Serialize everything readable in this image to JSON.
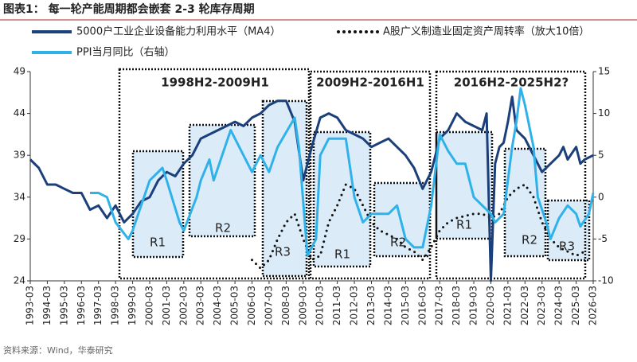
{
  "chart_data": {
    "type": "line",
    "title": "图表1：  每一轮产能周期都会嵌套 2-3 轮库存周期",
    "source": "资料来源：Wind，华泰研究",
    "xlim": [
      1993,
      2026
    ],
    "xticks": [
      {
        "value": 1993,
        "label": "1993-03"
      },
      {
        "value": 1994,
        "label": "1994-03"
      },
      {
        "value": 1995,
        "label": "1995-03"
      },
      {
        "value": 1996,
        "label": "1996-03"
      },
      {
        "value": 1997,
        "label": "1997-03"
      },
      {
        "value": 1998,
        "label": "1998-03"
      },
      {
        "value": 1999,
        "label": "1999-03"
      },
      {
        "value": 2000,
        "label": "2000-03"
      },
      {
        "value": 2001,
        "label": "2001-03"
      },
      {
        "value": 2002,
        "label": "2002-03"
      },
      {
        "value": 2003,
        "label": "2003-03"
      },
      {
        "value": 2004,
        "label": "2004-03"
      },
      {
        "value": 2005,
        "label": "2005-03"
      },
      {
        "value": 2006,
        "label": "2006-03"
      },
      {
        "value": 2007,
        "label": "2007-03"
      },
      {
        "value": 2008,
        "label": "2008-03"
      },
      {
        "value": 2009,
        "label": "2009-03"
      },
      {
        "value": 2010,
        "label": "2010-03"
      },
      {
        "value": 2011,
        "label": "2011-03"
      },
      {
        "value": 2012,
        "label": "2012-03"
      },
      {
        "value": 2013,
        "label": "2013-03"
      },
      {
        "value": 2014,
        "label": "2014-03"
      },
      {
        "value": 2015,
        "label": "2015-03"
      },
      {
        "value": 2016,
        "label": "2016-03"
      },
      {
        "value": 2017,
        "label": "2017-03"
      },
      {
        "value": 2018,
        "label": "2018-03"
      },
      {
        "value": 2019,
        "label": "2019-03"
      },
      {
        "value": 2020,
        "label": "2020-03"
      },
      {
        "value": 2021,
        "label": "2021-03"
      },
      {
        "value": 2022,
        "label": "2022-03"
      },
      {
        "value": 2023,
        "label": "2023-03"
      },
      {
        "value": 2024,
        "label": "2024-03"
      },
      {
        "value": 2025,
        "label": "2025-03"
      },
      {
        "value": 2026,
        "label": "2026-03"
      }
    ],
    "ylim": [
      24,
      49
    ],
    "yticks": [
      24,
      29,
      34,
      39,
      44,
      49
    ],
    "y2lim": [
      -10,
      15
    ],
    "y2ticks": [
      -10,
      -5,
      0,
      5,
      10,
      15
    ],
    "annotations": [
      "1998H2-2009H1",
      "2009H2-2016H1",
      "2016H2-2025H2?",
      "R1",
      "R2",
      "R3",
      "R1",
      "R2",
      "R1",
      "R2",
      "R3"
    ],
    "series": [
      {
        "name": "5000户工业企业设备能力利用水平（MA4）",
        "color": "#1b3f7a",
        "style": "solid",
        "x": [
          1993,
          1993.5,
          1994,
          1994.5,
          1995,
          1995.5,
          1996,
          1996.5,
          1997,
          1997.5,
          1998,
          1998.5,
          1999,
          1999.5,
          2000,
          2000.5,
          2001,
          2001.5,
          2002,
          2002.5,
          2003,
          2003.5,
          2004,
          2004.5,
          2005,
          2005.5,
          2006,
          2006.5,
          2007,
          2007.5,
          2008,
          2008.5,
          2009,
          2009.5,
          2010,
          2010.5,
          2011,
          2011.5,
          2012,
          2012.5,
          2013,
          2013.5,
          2014,
          2014.5,
          2015,
          2015.5,
          2016,
          2016.5,
          2017,
          2017.5,
          2018,
          2018.5,
          2019,
          2019.5,
          2019.75,
          2020,
          2020.25,
          2020.5,
          2020.75,
          2021,
          2021.25,
          2021.5,
          2022,
          2022.5,
          2023,
          2023.5,
          2024,
          2024.25,
          2024.5,
          2025,
          2025.25,
          2025.5,
          2026
        ],
        "values": [
          38.5,
          37.5,
          35.5,
          35.5,
          35,
          34.5,
          34.5,
          32.5,
          33,
          31.5,
          33,
          31,
          32,
          33.5,
          34,
          36,
          37,
          36.5,
          38,
          39,
          41,
          41.5,
          42,
          42.5,
          43,
          42.5,
          43.5,
          44,
          45,
          45.5,
          45.5,
          43,
          36,
          40,
          43.5,
          44,
          43.5,
          42,
          41.5,
          41,
          40,
          40.5,
          41,
          40,
          39,
          37.5,
          35,
          37,
          41,
          42,
          44,
          43,
          42.5,
          42,
          44,
          24,
          38,
          40,
          40.5,
          43,
          46,
          42,
          41,
          39,
          37,
          38,
          39,
          40,
          38.5,
          40,
          38,
          38.5,
          39
        ]
      },
      {
        "name": "A股广义制造业固定资产周转率（放大10倍）",
        "color": "#111111",
        "style": "dotted",
        "axis": "y2",
        "x": [
          2006,
          2006.5,
          2007,
          2007.5,
          2008,
          2008.5,
          2009,
          2009.5,
          2010,
          2010.5,
          2011,
          2011.5,
          2012,
          2012.5,
          2013,
          2013.5,
          2014,
          2014.5,
          2015,
          2015.5,
          2016,
          2016.5,
          2017,
          2017.5,
          2018,
          2019,
          2019.5,
          2020,
          2020.5,
          2021,
          2021.5,
          2022,
          2022.5,
          2023,
          2023.5,
          2024,
          2024.5,
          2025,
          2025.5
        ],
        "values": [
          -7.5,
          -8.5,
          -7.5,
          -5,
          -3,
          -2,
          -5,
          -7.5,
          -7,
          -3,
          -1,
          1.5,
          1,
          -1,
          -3,
          -4,
          -4.5,
          -5,
          -6,
          -6.5,
          -7.5,
          -6,
          -4,
          -3,
          -2.5,
          -2,
          -2,
          -2.5,
          -2,
          0,
          1,
          1.5,
          0,
          -3,
          -5,
          -6,
          -6.5,
          -7,
          -6.5
        ]
      },
      {
        "name": "PPI当月同比（右轴）",
        "color": "#2fb2ea",
        "style": "solid",
        "axis": "y2",
        "x": [
          1996.5,
          1997,
          1997.5,
          1998,
          1998.75,
          1999,
          2000,
          2000.75,
          2001,
          2001.75,
          2002,
          2002.75,
          2003,
          2003.5,
          2003.75,
          2004.75,
          2005.5,
          2006,
          2006.5,
          2007,
          2007.5,
          2008.5,
          2008.75,
          2009.25,
          2009.75,
          2010,
          2010.5,
          2011,
          2011.5,
          2012,
          2012.5,
          2013,
          2013.5,
          2014,
          2014.5,
          2015,
          2015.5,
          2016,
          2016.5,
          2017,
          2017.5,
          2018,
          2018.5,
          2019,
          2019.5,
          2020,
          2020.25,
          2020.75,
          2021.25,
          2021.5,
          2021.75,
          2022,
          2022.5,
          2022.75,
          2023.25,
          2023.5,
          2024,
          2024.5,
          2025,
          2025.25,
          2025.75,
          2026
        ],
        "values": [
          0.5,
          0.5,
          0,
          -3,
          -5,
          -4,
          2,
          3.5,
          2,
          -3,
          -4,
          0,
          2,
          4.5,
          2,
          8,
          5,
          3,
          5,
          3,
          6,
          9.5,
          6,
          -7,
          -5,
          5,
          7,
          7,
          7,
          0,
          -3,
          -2,
          -2,
          -2,
          -1,
          -5,
          -6,
          -6,
          -1,
          7.5,
          5.5,
          4,
          4,
          0,
          -1,
          -2,
          -3,
          -2,
          6,
          9,
          13,
          11,
          6,
          0,
          -3,
          -5,
          -2.5,
          -1,
          -2,
          -3.5,
          -2,
          0.5
        ]
      }
    ]
  }
}
